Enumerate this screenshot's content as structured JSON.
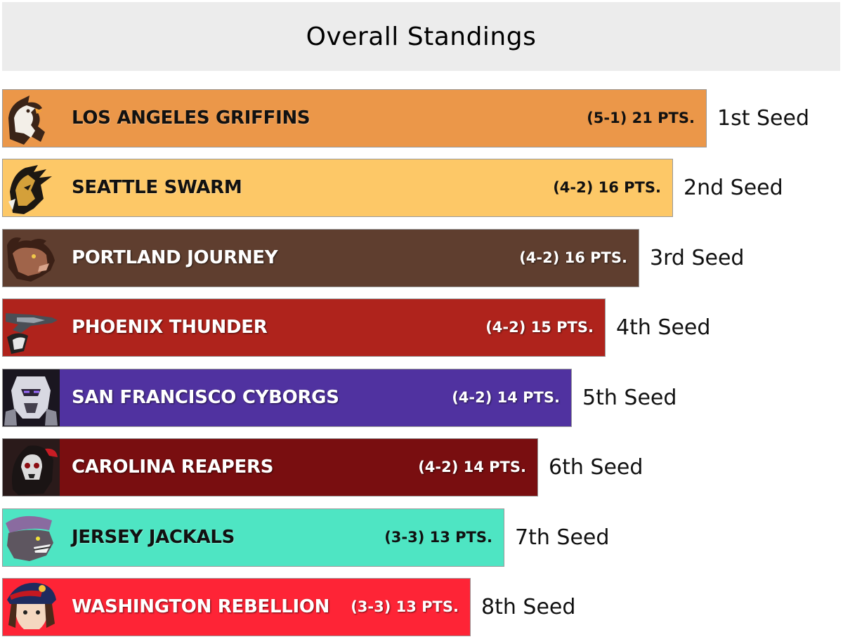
{
  "header": {
    "title": "Overall Standings"
  },
  "standings": [
    {
      "team": "LOS ANGELES GRIFFINS",
      "record": "(5-1) 21 PTS.",
      "seed": "1st Seed",
      "color": "#EB9749",
      "theme": "light",
      "logo_icon": "griffin-logo-icon"
    },
    {
      "team": "SEATTLE SWARM",
      "record": "(4-2) 16 PTS.",
      "seed": "2nd Seed",
      "color": "#FDC867",
      "theme": "light",
      "logo_icon": "swarm-logo-icon"
    },
    {
      "team": "PORTLAND JOURNEY",
      "record": "(4-2) 16 PTS.",
      "seed": "3rd Seed",
      "color": "#5F3E2F",
      "theme": "dark",
      "logo_icon": "bull-logo-icon"
    },
    {
      "team": "PHOENIX THUNDER",
      "record": "(4-2) 15 PTS.",
      "seed": "4th Seed",
      "color": "#AF231C",
      "theme": "dark",
      "logo_icon": "jet-logo-icon"
    },
    {
      "team": "SAN FRANCISCO CYBORGS",
      "record": "(4-2) 14 PTS.",
      "seed": "5th Seed",
      "color": "#5032A0",
      "theme": "dark",
      "logo_icon": "cyborg-logo-icon"
    },
    {
      "team": "CAROLINA REAPERS",
      "record": "(4-2) 14 PTS.",
      "seed": "6th Seed",
      "color": "#790E10",
      "theme": "dark",
      "logo_icon": "reaper-logo-icon"
    },
    {
      "team": "JERSEY JACKALS",
      "record": "(3-3) 13 PTS.",
      "seed": "7th Seed",
      "color": "#4EE5C3",
      "theme": "light",
      "logo_icon": "jackal-logo-icon"
    },
    {
      "team": "WASHINGTON REBELLION",
      "record": "(3-3) 13 PTS.",
      "seed": "8th Seed",
      "color": "#FE2436",
      "theme": "dark",
      "logo_icon": "rebel-logo-icon"
    }
  ]
}
